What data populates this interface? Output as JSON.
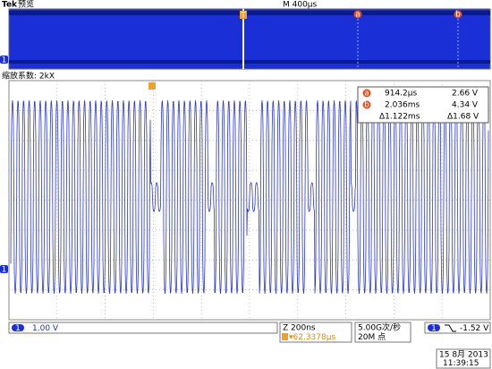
{
  "header": {
    "brand": "Tek",
    "mode": "预览",
    "timebase": "M 400μs",
    "cursor_a": "a",
    "cursor_b": "b",
    "trigger_marker": "T",
    "channel": "1"
  },
  "zoom_label": "缩放系数: 2kX",
  "cursors": {
    "a": {
      "label": "a",
      "time": "914.2μs",
      "volt": "2.66 V"
    },
    "b": {
      "label": "b",
      "time": "2.036ms",
      "volt": "4.34 V"
    },
    "delta": {
      "time": "Δ1.122ms",
      "volt": "Δ1.68 V"
    }
  },
  "status": {
    "channel": "1",
    "scale": "1.00 V",
    "zoom_time": "Z 200ns",
    "position": "▾62.3378μs",
    "sample_rate": "5.00G次/秒",
    "record_length": "20M 点",
    "trigger_channel": "1",
    "trigger_level": "-1.52 V",
    "date": "15 8月 2013",
    "time": "11:39:15"
  }
}
